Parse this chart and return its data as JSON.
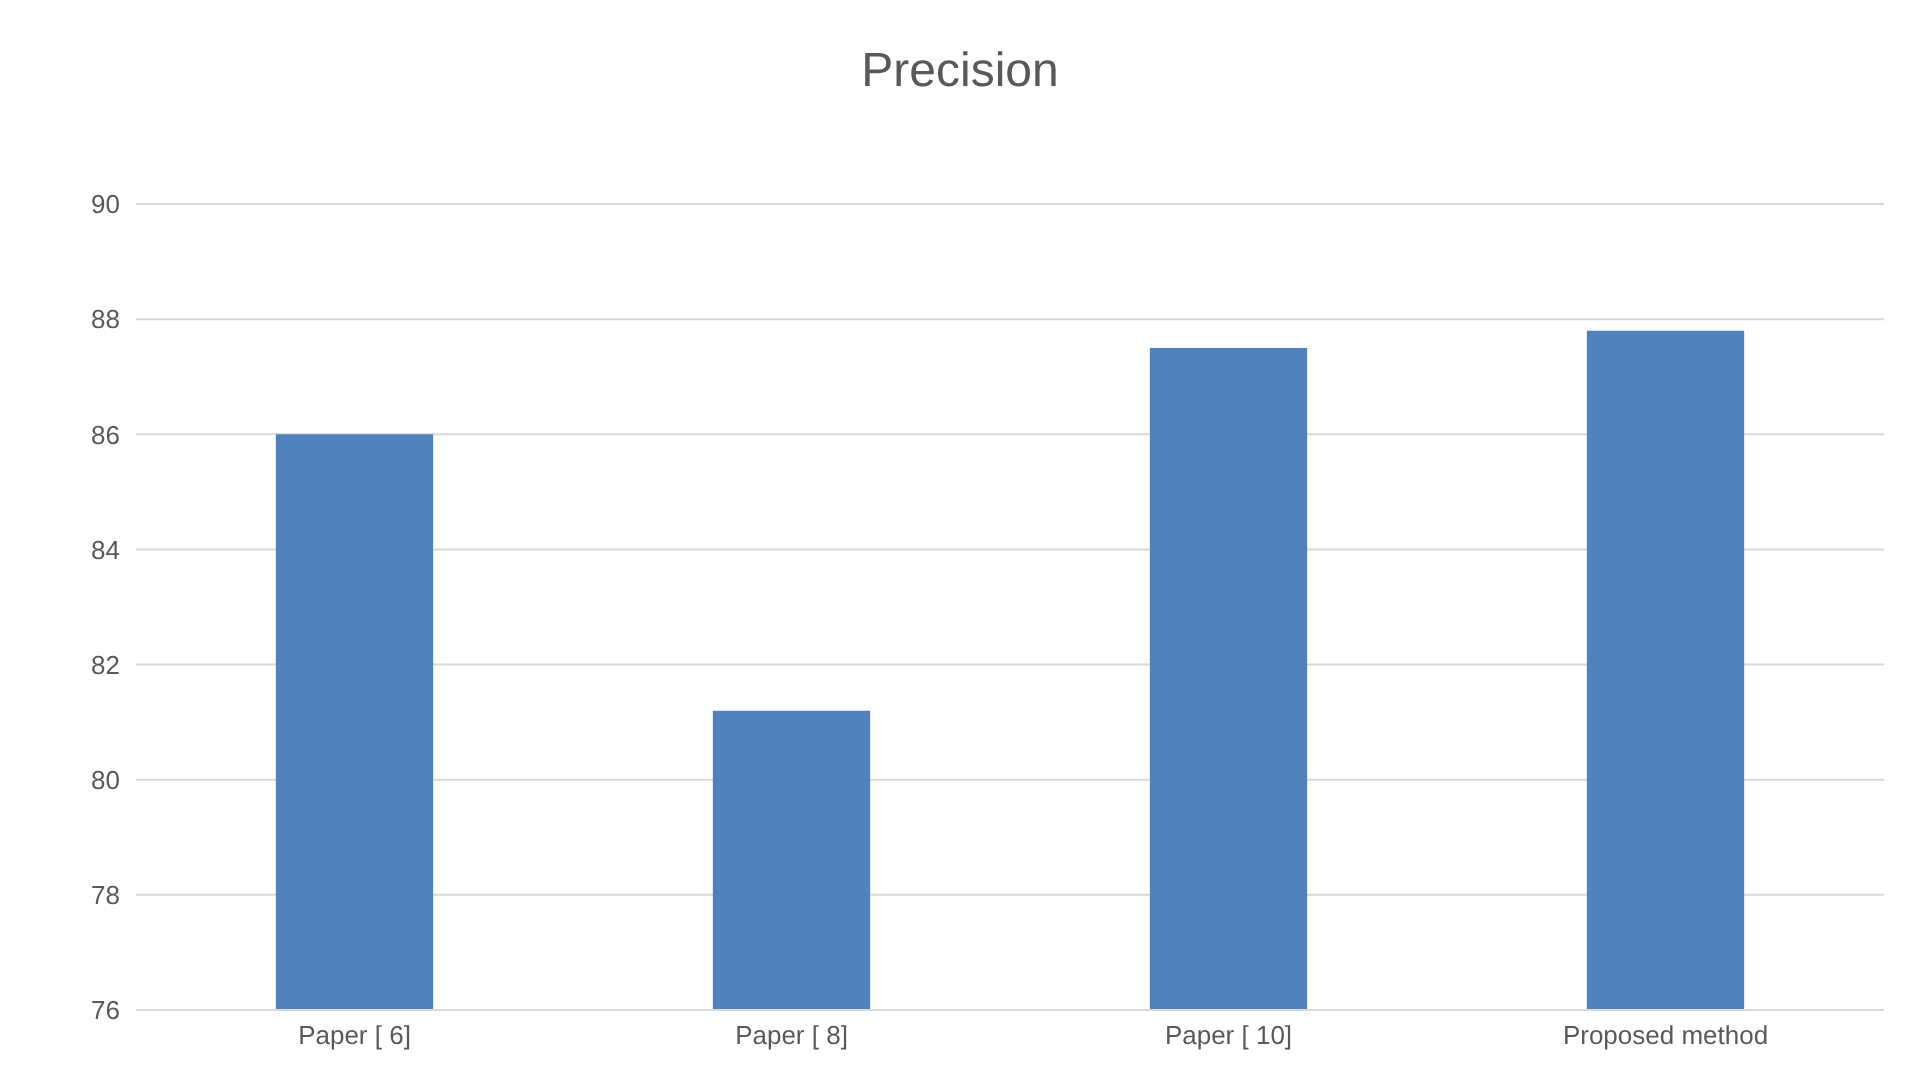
{
  "chart_data": {
    "type": "bar",
    "title": "Precision",
    "categories": [
      "Paper [ 6]",
      "Paper [ 8]",
      "Paper [ 10]",
      "Proposed method"
    ],
    "values": [
      86.0,
      81.2,
      87.5,
      87.8
    ],
    "color": "#4f81bd",
    "ylim": [
      76,
      90
    ],
    "yticks": [
      76,
      78,
      80,
      82,
      84,
      86,
      88,
      90
    ],
    "grid": "y"
  }
}
